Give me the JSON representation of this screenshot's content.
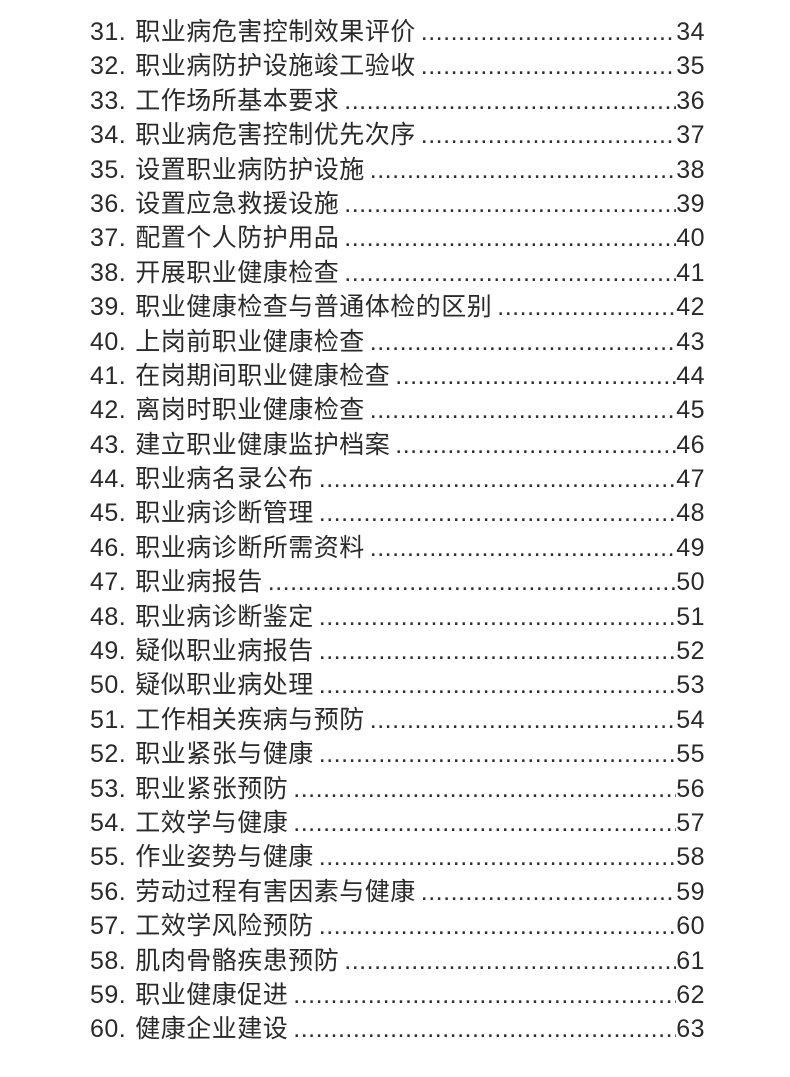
{
  "page": {
    "background_color": "#ffffff",
    "text_color": "#2a2a2a"
  },
  "toc": {
    "entries": [
      {
        "num": "31.",
        "title": "职业病危害控制效果评价",
        "page": "34"
      },
      {
        "num": "32.",
        "title": "职业病防护设施竣工验收",
        "page": "35"
      },
      {
        "num": "33.",
        "title": "工作场所基本要求",
        "page": "36"
      },
      {
        "num": "34.",
        "title": "职业病危害控制优先次序",
        "page": "37"
      },
      {
        "num": "35.",
        "title": "设置职业病防护设施",
        "page": "38"
      },
      {
        "num": "36.",
        "title": "设置应急救援设施",
        "page": "39"
      },
      {
        "num": "37.",
        "title": "配置个人防护用品",
        "page": "40"
      },
      {
        "num": "38.",
        "title": "开展职业健康检查",
        "page": "41"
      },
      {
        "num": "39.",
        "title": "职业健康检查与普通体检的区别",
        "page": "42"
      },
      {
        "num": "40.",
        "title": "上岗前职业健康检查",
        "page": "43"
      },
      {
        "num": "41.",
        "title": "在岗期间职业健康检查",
        "page": "44"
      },
      {
        "num": "42.",
        "title": "离岗时职业健康检查",
        "page": "45"
      },
      {
        "num": "43.",
        "title": "建立职业健康监护档案",
        "page": "46"
      },
      {
        "num": "44.",
        "title": "职业病名录公布",
        "page": "47"
      },
      {
        "num": "45.",
        "title": "职业病诊断管理",
        "page": "48"
      },
      {
        "num": "46.",
        "title": "职业病诊断所需资料",
        "page": "49"
      },
      {
        "num": "47.",
        "title": "职业病报告",
        "page": "50"
      },
      {
        "num": "48.",
        "title": "职业病诊断鉴定",
        "page": "51"
      },
      {
        "num": "49.",
        "title": "疑似职业病报告",
        "page": "52"
      },
      {
        "num": "50.",
        "title": "疑似职业病处理",
        "page": "53"
      },
      {
        "num": "51.",
        "title": "工作相关疾病与预防",
        "page": "54"
      },
      {
        "num": "52.",
        "title": "职业紧张与健康",
        "page": "55"
      },
      {
        "num": "53.",
        "title": "职业紧张预防",
        "page": "56"
      },
      {
        "num": "54.",
        "title": "工效学与健康",
        "page": "57"
      },
      {
        "num": "55.",
        "title": "作业姿势与健康",
        "page": "58"
      },
      {
        "num": "56.",
        "title": "劳动过程有害因素与健康",
        "page": "59"
      },
      {
        "num": "57.",
        "title": "工效学风险预防",
        "page": "60"
      },
      {
        "num": "58.",
        "title": "肌肉骨骼疾患预防",
        "page": "61"
      },
      {
        "num": "59.",
        "title": "职业健康促进",
        "page": "62"
      },
      {
        "num": "60.",
        "title": "健康企业建设",
        "page": "63"
      }
    ]
  }
}
